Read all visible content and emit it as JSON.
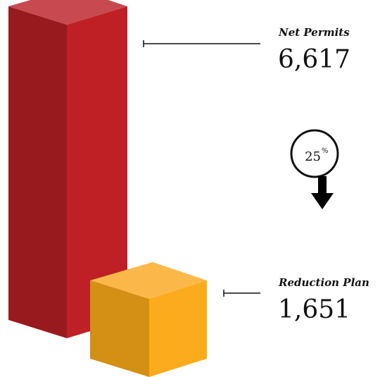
{
  "chart_data": {
    "type": "bar",
    "categories": [
      "Net Permits",
      "Reduction Plan"
    ],
    "values": [
      6617,
      1651
    ],
    "value_labels": [
      "6,617",
      "1,651"
    ],
    "change": {
      "value": "25",
      "unit": "%",
      "direction": "down"
    },
    "colors": {
      "Net Permits": {
        "front": "#be2026",
        "side": "#981a1e",
        "top": "#c84a50"
      },
      "Reduction Plan": {
        "front": "#fbab1c",
        "side": "#d48f15",
        "top": "#fbb848"
      }
    },
    "grid": false,
    "legend": "none",
    "style": "3d-box"
  }
}
